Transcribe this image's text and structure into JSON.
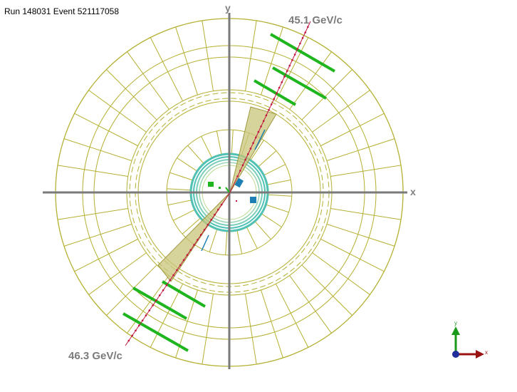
{
  "event": {
    "title": "Run 148031 Event 521117058"
  },
  "axes": {
    "x_label": "x",
    "y_label": "y"
  },
  "tracks": {
    "upper_label": "45.1 GeV/c",
    "lower_label": "46.3 GeV/c"
  },
  "orientation": {
    "x_label": "x",
    "y_label": "y"
  },
  "colors": {
    "detector": "#b4b032",
    "inner_tracker": "#4fc1b5",
    "chambers": "#1fb51f",
    "track": "#c0143c",
    "cone": "#c8c47a",
    "hits_blue": "#1e7fb4",
    "axis": "#7a7a7a"
  }
}
